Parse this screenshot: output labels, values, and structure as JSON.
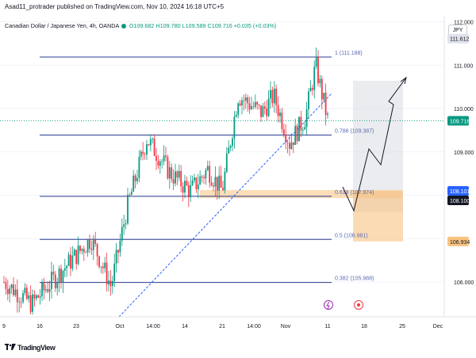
{
  "header": {
    "published_text": "Asad11_protrader published on TradingView.com, Nov 10, 2024 16:18 UTC+5"
  },
  "legend": {
    "symbol": "Canadian Dollar / Japanese Yen, 4h, OANDA",
    "ohlc": "O109.682 H109.780 L109.589 C109.716 +0.035 (+0.03%)",
    "currency": "JPY"
  },
  "price_axis": {
    "ticks": [
      "112.000",
      "111.000",
      "110.000",
      "109.000",
      "106.000"
    ],
    "badges": [
      {
        "text": "111.612",
        "price": 111.612,
        "bg": "#e0e3eb",
        "fg": "#131722"
      },
      {
        "text": "109.716",
        "price": 109.716,
        "bg": "#089981",
        "fg": "#ffffff"
      },
      {
        "text": "108.101",
        "price": 108.101,
        "bg": "#2962ff",
        "fg": "#ffffff"
      },
      {
        "text": "108.100",
        "price": 108.1,
        "bg": "#131722",
        "fg": "#ffffff"
      },
      {
        "text": "106.934",
        "price": 106.934,
        "bg": "#f9c380",
        "fg": "#131722"
      }
    ]
  },
  "time_axis": {
    "ticks": [
      "9",
      "16",
      "23",
      "Oct",
      "14:00",
      "14",
      "21",
      "14:00",
      "Nov",
      "11",
      "18",
      "25",
      "Dec"
    ]
  },
  "fib": {
    "levels": [
      {
        "label": "1 (111.188)",
        "price": 111.188
      },
      {
        "label": "0.786 (109.387)",
        "price": 109.387
      },
      {
        "label": "0.618 (107.974)",
        "price": 107.974
      },
      {
        "label": "0.5 (106.981)",
        "price": 106.981
      },
      {
        "label": "0.382 (105.988)",
        "price": 105.988
      }
    ]
  },
  "colors": {
    "up": "#089981",
    "down": "#f23645",
    "fib_line": "#2a3b8f",
    "trend_line": "#2962ff",
    "zone": "#f9c380",
    "target_box": "#d1d4dc"
  },
  "icons": [
    "lightning-icon",
    "target-icon"
  ],
  "footer": {
    "brand": "TradingView"
  }
}
